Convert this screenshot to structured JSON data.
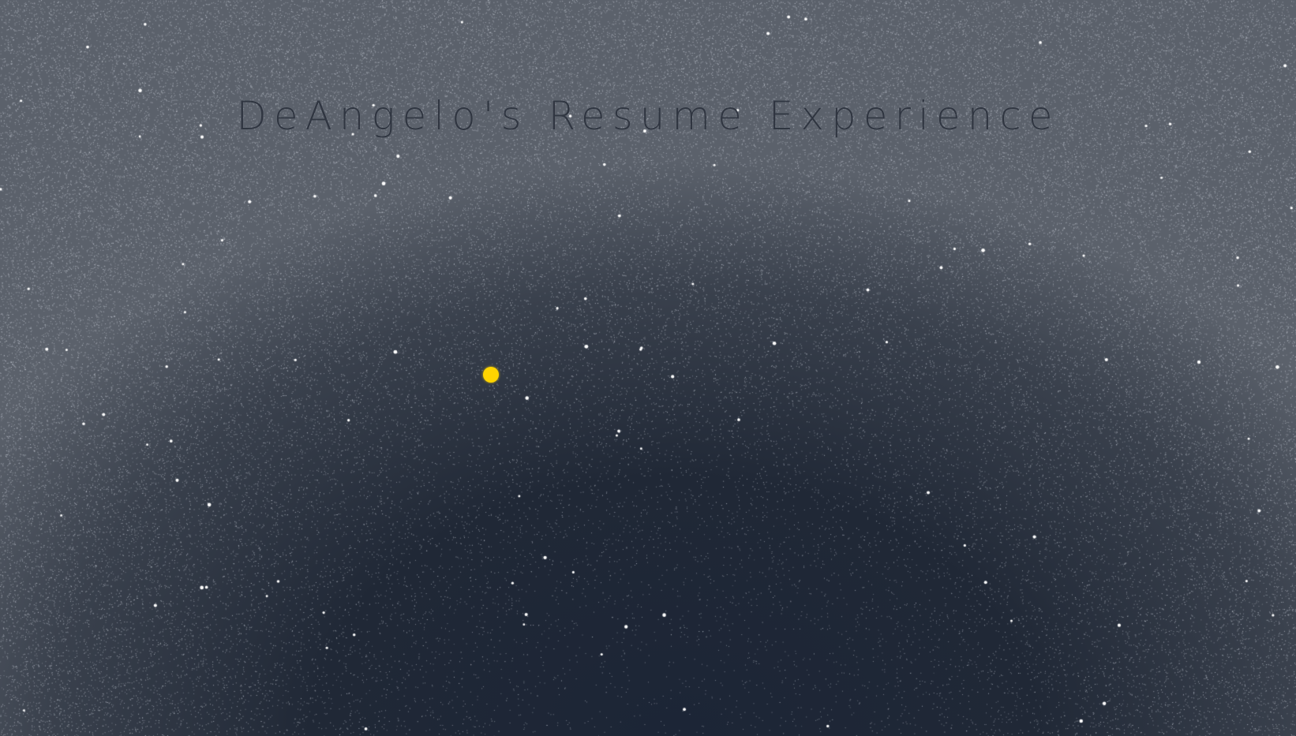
{
  "page": {
    "title": "DeAngelo's Resume Experience"
  },
  "colors": {
    "background": "#1b2230",
    "sun": "#ffd400",
    "star": "#ffffff"
  },
  "icons": {
    "sun": "sun-icon"
  }
}
